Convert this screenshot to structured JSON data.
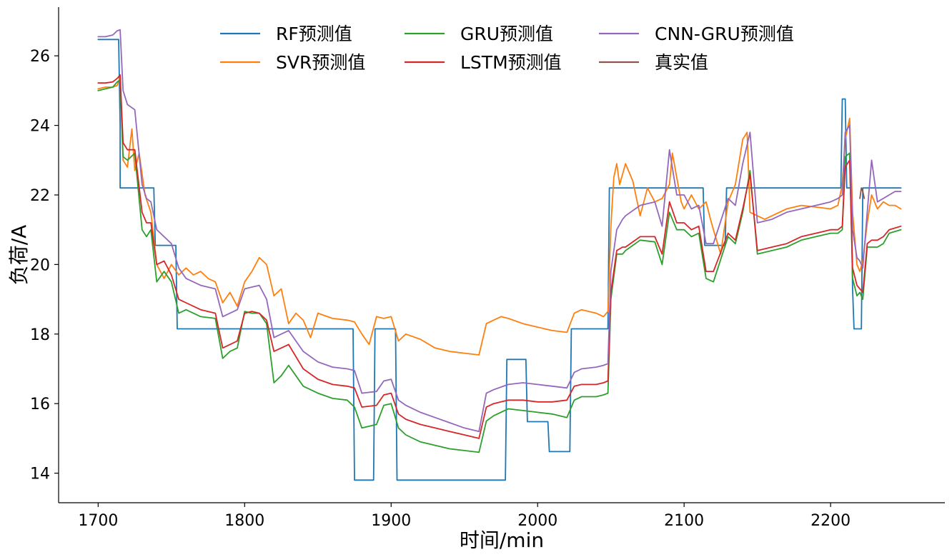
{
  "chart_data": {
    "type": "line",
    "title": "",
    "xlabel": "时间/min",
    "ylabel": "负荷/A",
    "xlim": [
      1673,
      2278
    ],
    "ylim": [
      13.15,
      27.4
    ],
    "xticks": [
      1700,
      1800,
      1900,
      2000,
      2100,
      2200
    ],
    "yticks": [
      14,
      16,
      18,
      20,
      22,
      24,
      26
    ],
    "grid": false,
    "legend": "top-center",
    "series": [
      {
        "name": "RF预测值",
        "color": "#1f77b4",
        "x": [
          1700,
          1714,
          1715,
          1715,
          1730,
          1738,
          1739,
          1748,
          1753,
          1754,
          1874,
          1875,
          1888,
          1889,
          1903,
          1904,
          1978,
          1979,
          1992,
          1993,
          2007,
          2008,
          2022,
          2023,
          2048,
          2049,
          2113,
          2114,
          2128,
          2129,
          2207,
          2208,
          2210,
          2211,
          2214,
          2215,
          2216,
          2217,
          2221,
          2222,
          2248
        ],
        "values": [
          26.47,
          26.47,
          24.0,
          22.2,
          22.2,
          22.2,
          20.55,
          20.55,
          20.55,
          18.15,
          18.15,
          13.8,
          13.8,
          18.15,
          18.15,
          13.8,
          13.8,
          17.27,
          17.27,
          15.48,
          15.48,
          14.62,
          14.62,
          18.15,
          18.15,
          22.2,
          22.2,
          20.55,
          20.55,
          22.2,
          22.2,
          24.76,
          24.76,
          22.2,
          22.2,
          19.3,
          18.15,
          18.15,
          18.15,
          22.2,
          22.2
        ]
      },
      {
        "name": "SVR预测值",
        "color": "#ff7f0e",
        "x": [
          1700,
          1705,
          1710,
          1713,
          1715,
          1717,
          1720,
          1723,
          1725,
          1728,
          1732,
          1736,
          1740,
          1745,
          1750,
          1755,
          1760,
          1765,
          1770,
          1775,
          1780,
          1785,
          1790,
          1795,
          1800,
          1805,
          1810,
          1815,
          1820,
          1825,
          1830,
          1835,
          1840,
          1845,
          1850,
          1860,
          1870,
          1875,
          1880,
          1885,
          1890,
          1895,
          1900,
          1905,
          1910,
          1920,
          1930,
          1940,
          1950,
          1960,
          1965,
          1970,
          1975,
          1980,
          1990,
          2000,
          2010,
          2020,
          2025,
          2030,
          2040,
          2045,
          2048,
          2050,
          2052,
          2054,
          2056,
          2060,
          2065,
          2070,
          2075,
          2080,
          2085,
          2090,
          2092,
          2095,
          2098,
          2100,
          2105,
          2110,
          2115,
          2118,
          2120,
          2125,
          2130,
          2135,
          2140,
          2143,
          2145,
          2150,
          2155,
          2160,
          2170,
          2180,
          2190,
          2200,
          2205,
          2208,
          2210,
          2213,
          2215,
          2218,
          2220,
          2222,
          2225,
          2228,
          2232,
          2236,
          2240,
          2244,
          2248
        ],
        "values": [
          25.05,
          25.1,
          25.1,
          25.15,
          25.4,
          23.0,
          22.8,
          23.9,
          22.7,
          23.2,
          22.0,
          21.5,
          20.0,
          19.6,
          20.0,
          19.7,
          19.9,
          19.7,
          19.8,
          19.6,
          19.5,
          18.9,
          19.2,
          18.8,
          19.5,
          19.8,
          20.2,
          20.0,
          19.1,
          19.3,
          18.3,
          18.6,
          18.4,
          17.9,
          18.6,
          18.45,
          18.4,
          18.35,
          18.0,
          17.7,
          18.5,
          18.45,
          18.5,
          17.8,
          18.0,
          17.85,
          17.6,
          17.5,
          17.45,
          17.4,
          18.3,
          18.4,
          18.5,
          18.45,
          18.3,
          18.2,
          18.1,
          18.05,
          18.6,
          18.7,
          18.6,
          18.5,
          18.65,
          21.1,
          22.5,
          22.9,
          22.3,
          22.9,
          22.4,
          21.4,
          22.2,
          21.8,
          21.9,
          22.3,
          23.2,
          22.5,
          21.8,
          21.6,
          22.0,
          21.6,
          21.8,
          21.3,
          21.0,
          20.3,
          21.8,
          22.3,
          23.6,
          23.8,
          21.5,
          21.4,
          21.3,
          21.4,
          21.6,
          21.7,
          21.65,
          21.6,
          21.7,
          22.3,
          23.6,
          24.2,
          21.5,
          20.0,
          19.8,
          20.1,
          21.2,
          22.0,
          21.6,
          21.8,
          21.7,
          21.7,
          21.6
        ]
      },
      {
        "name": "GRU预测值",
        "color": "#2ca02c",
        "x": [
          1700,
          1705,
          1710,
          1713,
          1715,
          1717,
          1720,
          1725,
          1730,
          1733,
          1736,
          1740,
          1745,
          1750,
          1755,
          1760,
          1770,
          1780,
          1785,
          1790,
          1795,
          1800,
          1805,
          1810,
          1815,
          1820,
          1825,
          1830,
          1840,
          1850,
          1860,
          1870,
          1875,
          1880,
          1890,
          1895,
          1900,
          1905,
          1910,
          1920,
          1930,
          1940,
          1950,
          1960,
          1965,
          1970,
          1980,
          1990,
          2000,
          2010,
          2020,
          2025,
          2030,
          2040,
          2045,
          2048,
          2050,
          2054,
          2058,
          2060,
          2070,
          2080,
          2085,
          2090,
          2095,
          2100,
          2105,
          2110,
          2115,
          2120,
          2130,
          2135,
          2140,
          2145,
          2150,
          2160,
          2170,
          2180,
          2190,
          2200,
          2205,
          2208,
          2210,
          2213,
          2215,
          2218,
          2220,
          2222,
          2225,
          2228,
          2232,
          2236,
          2240,
          2244,
          2248
        ],
        "values": [
          25.0,
          25.05,
          25.1,
          25.25,
          25.3,
          23.1,
          23.0,
          23.2,
          21.0,
          20.8,
          21.0,
          19.5,
          19.8,
          19.5,
          18.6,
          18.7,
          18.5,
          18.45,
          17.3,
          17.5,
          17.6,
          18.65,
          18.6,
          18.6,
          18.3,
          16.6,
          16.8,
          17.1,
          16.5,
          16.3,
          16.15,
          16.1,
          15.9,
          15.3,
          15.4,
          15.95,
          16.0,
          15.3,
          15.1,
          14.9,
          14.8,
          14.7,
          14.65,
          14.6,
          15.5,
          15.65,
          15.85,
          15.8,
          15.75,
          15.7,
          15.6,
          16.1,
          16.2,
          16.2,
          16.25,
          16.3,
          19.0,
          20.3,
          20.3,
          20.4,
          20.7,
          20.65,
          20.0,
          21.5,
          21.0,
          21.0,
          20.8,
          20.9,
          19.6,
          19.5,
          20.8,
          20.6,
          21.5,
          22.7,
          20.3,
          20.4,
          20.5,
          20.7,
          20.8,
          20.9,
          20.9,
          21.0,
          23.1,
          23.2,
          19.6,
          19.1,
          19.2,
          19.0,
          20.5,
          20.5,
          20.5,
          20.6,
          20.9,
          20.95,
          21.0
        ]
      },
      {
        "name": "LSTM预测值",
        "color": "#d62728",
        "x": [
          1700,
          1705,
          1710,
          1713,
          1715,
          1717,
          1720,
          1725,
          1730,
          1733,
          1736,
          1740,
          1745,
          1750,
          1755,
          1760,
          1770,
          1780,
          1785,
          1790,
          1795,
          1800,
          1805,
          1810,
          1815,
          1820,
          1825,
          1830,
          1840,
          1850,
          1860,
          1870,
          1875,
          1880,
          1890,
          1895,
          1900,
          1905,
          1910,
          1920,
          1930,
          1940,
          1950,
          1960,
          1965,
          1970,
          1980,
          1990,
          2000,
          2010,
          2020,
          2025,
          2030,
          2040,
          2045,
          2048,
          2050,
          2054,
          2058,
          2060,
          2070,
          2080,
          2085,
          2090,
          2095,
          2100,
          2105,
          2110,
          2115,
          2120,
          2130,
          2135,
          2140,
          2145,
          2150,
          2160,
          2170,
          2180,
          2190,
          2200,
          2205,
          2208,
          2210,
          2213,
          2215,
          2218,
          2220,
          2222,
          2225,
          2228,
          2232,
          2236,
          2240,
          2244,
          2248
        ],
        "values": [
          25.22,
          25.22,
          25.25,
          25.35,
          25.45,
          23.5,
          23.3,
          23.3,
          21.5,
          21.2,
          21.2,
          20.0,
          20.1,
          19.7,
          19.0,
          18.9,
          18.7,
          18.6,
          17.6,
          17.7,
          17.8,
          18.6,
          18.65,
          18.6,
          18.4,
          17.5,
          17.6,
          17.7,
          17.0,
          16.7,
          16.55,
          16.5,
          16.45,
          15.9,
          15.95,
          16.25,
          16.3,
          15.7,
          15.55,
          15.4,
          15.3,
          15.2,
          15.1,
          15.0,
          15.9,
          16.0,
          16.1,
          16.1,
          16.05,
          16.05,
          16.1,
          16.5,
          16.55,
          16.55,
          16.6,
          16.65,
          19.2,
          20.4,
          20.5,
          20.5,
          20.8,
          20.8,
          20.3,
          21.8,
          21.2,
          21.2,
          21.0,
          21.1,
          19.8,
          19.8,
          20.9,
          20.7,
          21.6,
          22.6,
          20.4,
          20.5,
          20.6,
          20.8,
          20.9,
          21.0,
          21.0,
          21.1,
          22.8,
          23.0,
          19.9,
          19.4,
          19.3,
          19.2,
          20.6,
          20.7,
          20.7,
          20.8,
          21.0,
          21.05,
          21.1
        ]
      },
      {
        "name": "CNN-GRU预测值",
        "color": "#9467bd",
        "x": [
          1700,
          1705,
          1710,
          1713,
          1715,
          1717,
          1720,
          1725,
          1730,
          1733,
          1736,
          1740,
          1745,
          1750,
          1755,
          1760,
          1770,
          1780,
          1785,
          1790,
          1795,
          1800,
          1805,
          1810,
          1815,
          1820,
          1825,
          1830,
          1840,
          1850,
          1860,
          1870,
          1875,
          1880,
          1890,
          1895,
          1900,
          1905,
          1910,
          1920,
          1930,
          1940,
          1950,
          1960,
          1965,
          1970,
          1980,
          1990,
          2000,
          2010,
          2020,
          2025,
          2030,
          2040,
          2045,
          2048,
          2050,
          2054,
          2058,
          2060,
          2070,
          2080,
          2085,
          2090,
          2095,
          2100,
          2105,
          2110,
          2115,
          2120,
          2130,
          2135,
          2140,
          2145,
          2150,
          2160,
          2170,
          2180,
          2190,
          2200,
          2205,
          2208,
          2210,
          2213,
          2215,
          2218,
          2220,
          2222,
          2225,
          2228,
          2232,
          2236,
          2240,
          2244,
          2248
        ],
        "values": [
          26.55,
          26.55,
          26.6,
          26.72,
          26.75,
          25.0,
          24.6,
          24.45,
          22.3,
          21.9,
          21.8,
          21.0,
          20.8,
          20.6,
          19.9,
          19.6,
          19.4,
          19.3,
          18.5,
          18.6,
          18.7,
          19.3,
          19.35,
          19.4,
          19.0,
          17.9,
          18.0,
          18.1,
          17.5,
          17.2,
          17.05,
          17.0,
          16.95,
          16.3,
          16.35,
          16.65,
          16.7,
          16.1,
          15.95,
          15.75,
          15.6,
          15.45,
          15.3,
          15.2,
          16.3,
          16.4,
          16.55,
          16.6,
          16.55,
          16.5,
          16.45,
          16.9,
          17.0,
          17.05,
          17.1,
          17.15,
          19.8,
          21.0,
          21.3,
          21.4,
          21.7,
          21.8,
          21.1,
          23.3,
          22.0,
          22.0,
          21.6,
          21.7,
          20.6,
          20.6,
          21.9,
          21.7,
          22.9,
          23.8,
          21.2,
          21.3,
          21.5,
          21.6,
          21.7,
          21.8,
          21.9,
          22.0,
          23.8,
          24.0,
          21.0,
          20.2,
          20.1,
          19.9,
          21.5,
          23.0,
          21.8,
          21.9,
          22.0,
          22.1,
          22.1
        ]
      },
      {
        "name": "真实值",
        "color": "#8c564b",
        "x": [
          2220,
          2221,
          2222,
          2223
        ],
        "values": [
          21.9,
          22.2,
          22.1,
          21.9
        ]
      }
    ]
  }
}
